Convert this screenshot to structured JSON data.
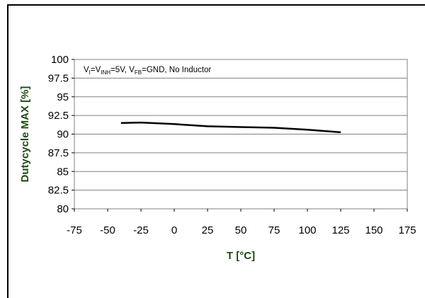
{
  "chart_data": {
    "type": "line",
    "title": "",
    "xlabel": "T [°C]",
    "ylabel": "Dutycycle MAX [%]",
    "xlim": [
      -75,
      175
    ],
    "ylim": [
      80,
      100
    ],
    "x_ticks": [
      "-75",
      "-50",
      "-25",
      "0",
      "25",
      "50",
      "75",
      "100",
      "125",
      "150",
      "175"
    ],
    "y_ticks": [
      "100",
      "97.5",
      "95",
      "92.5",
      "90",
      "87.5",
      "85",
      "82.5",
      "80"
    ],
    "grid": true,
    "annotation": {
      "parts": [
        {
          "text": "V",
          "sub": false
        },
        {
          "text": "I",
          "sub": true
        },
        {
          "text": "=V",
          "sub": false
        },
        {
          "text": "INH",
          "sub": true
        },
        {
          "text": "=5V, V",
          "sub": false
        },
        {
          "text": "FB",
          "sub": true
        },
        {
          "text": "=GND, No Inductor",
          "sub": false
        }
      ]
    },
    "series": [
      {
        "x": [
          -40,
          -25,
          0,
          25,
          50,
          75,
          100,
          125
        ],
        "y": [
          91.5,
          91.55,
          91.35,
          91.05,
          90.95,
          90.85,
          90.6,
          90.25
        ],
        "color": "#000000"
      }
    ]
  }
}
